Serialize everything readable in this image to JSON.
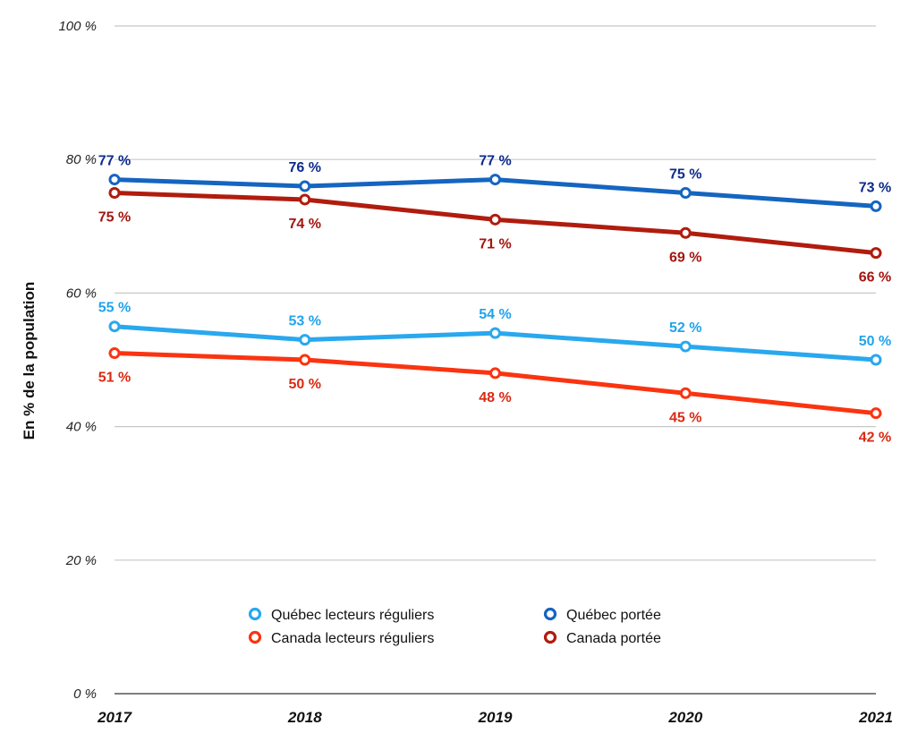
{
  "chart_data": {
    "type": "line",
    "ylabel": "En % de la population",
    "xlabel": "",
    "categories": [
      "2017",
      "2018",
      "2019",
      "2020",
      "2021"
    ],
    "ylim": [
      0,
      100
    ],
    "yticks": [
      0,
      20,
      40,
      60,
      80,
      100
    ],
    "ytick_labels": [
      "0 %",
      "20 %",
      "40 %",
      "60 %",
      "80 %",
      "100 %"
    ],
    "grid": true,
    "legend_position": "bottom-center",
    "value_suffix": " %",
    "series": [
      {
        "name": "Québec portée",
        "values": [
          77,
          76,
          77,
          75,
          73
        ],
        "color": "#1565c0",
        "label_color": "#0d2b8c",
        "label_pos": "above"
      },
      {
        "name": "Canada portée",
        "values": [
          75,
          74,
          71,
          69,
          66
        ],
        "color": "#b01c0e",
        "label_color": "#a31510",
        "label_pos": "below"
      },
      {
        "name": "Québec lecteurs réguliers",
        "values": [
          55,
          53,
          54,
          52,
          50
        ],
        "color": "#29a8ee",
        "label_color": "#21a3ec",
        "label_pos": "above"
      },
      {
        "name": "Canada lecteurs réguliers",
        "values": [
          51,
          50,
          48,
          45,
          42
        ],
        "color": "#fa3411",
        "label_color": "#d92a12",
        "label_pos": "below"
      }
    ],
    "legend": [
      {
        "series": 2
      },
      {
        "series": 0
      },
      {
        "series": 3
      },
      {
        "series": 1
      }
    ]
  }
}
